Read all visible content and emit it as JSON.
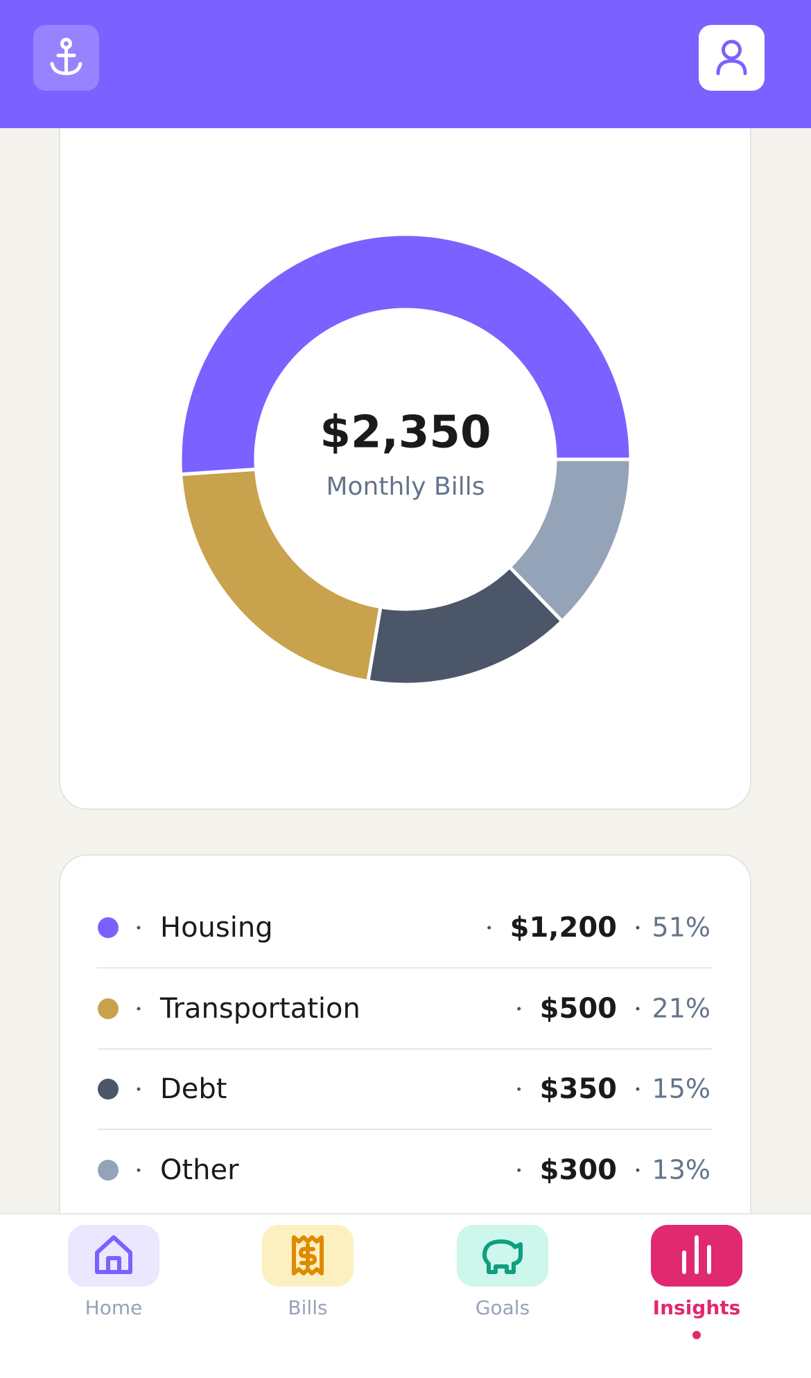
{
  "chart_data": {
    "type": "donut",
    "center_value": "$2,350",
    "center_label": "Monthly Bills",
    "categories": [
      "Housing",
      "Transportation",
      "Debt",
      "Other"
    ],
    "values": [
      1200,
      500,
      350,
      300
    ],
    "value_labels": [
      "$1,200",
      "$500",
      "$350",
      "$300"
    ],
    "colors": [
      "#7b61ff",
      "#c8a24c",
      "#4b5668",
      "#94a3b8"
    ],
    "shares": [
      51,
      21,
      15,
      13
    ],
    "share_labels": [
      "51%",
      "21%",
      "15%",
      "13%"
    ]
  },
  "nav": {
    "tabs": [
      "Home",
      "Bills",
      "Goals",
      "Insights"
    ],
    "active": 3
  }
}
